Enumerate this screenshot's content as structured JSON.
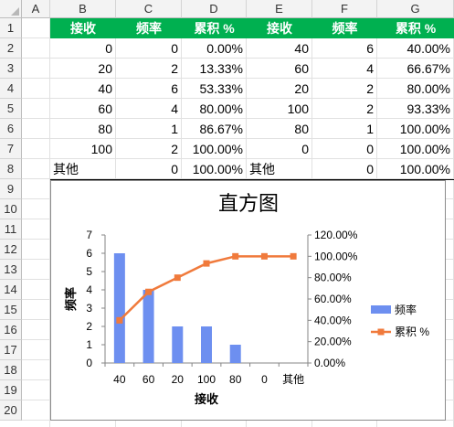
{
  "columns": [
    "A",
    "B",
    "C",
    "D",
    "E",
    "F",
    "G"
  ],
  "rows": [
    "1",
    "2",
    "3",
    "4",
    "5",
    "6",
    "7",
    "8",
    "9",
    "10",
    "11",
    "12",
    "13",
    "14",
    "15",
    "16",
    "17",
    "18",
    "19",
    "20"
  ],
  "table_left": {
    "headers": [
      "接收",
      "频率",
      "累积 %"
    ],
    "rows": [
      [
        "0",
        "0",
        "0.00%"
      ],
      [
        "20",
        "2",
        "13.33%"
      ],
      [
        "40",
        "6",
        "53.33%"
      ],
      [
        "60",
        "4",
        "80.00%"
      ],
      [
        "80",
        "1",
        "86.67%"
      ],
      [
        "100",
        "2",
        "100.00%"
      ],
      [
        "其他",
        "0",
        "100.00%"
      ]
    ]
  },
  "table_right": {
    "headers": [
      "接收",
      "频率",
      "累积 %"
    ],
    "rows": [
      [
        "40",
        "6",
        "40.00%"
      ],
      [
        "60",
        "4",
        "66.67%"
      ],
      [
        "20",
        "2",
        "80.00%"
      ],
      [
        "100",
        "2",
        "93.33%"
      ],
      [
        "80",
        "1",
        "100.00%"
      ],
      [
        "0",
        "0",
        "100.00%"
      ],
      [
        "其他",
        "0",
        "100.00%"
      ]
    ]
  },
  "chart_data": {
    "type": "bar",
    "title": "直方图",
    "xlabel": "接收",
    "ylabel": "频率",
    "categories": [
      "40",
      "60",
      "20",
      "100",
      "80",
      "0",
      "其他"
    ],
    "series": [
      {
        "name": "频率",
        "type": "bar",
        "axis": "left",
        "values": [
          6,
          4,
          2,
          2,
          1,
          0,
          0
        ],
        "color": "#6d8ff0"
      },
      {
        "name": "累积 %",
        "type": "line",
        "axis": "right",
        "values": [
          40.0,
          66.67,
          80.0,
          93.33,
          100.0,
          100.0,
          100.0
        ],
        "color": "#f07a3c"
      }
    ],
    "ylim_left": [
      0,
      7
    ],
    "yticks_left": [
      "0",
      "1",
      "2",
      "3",
      "4",
      "5",
      "6",
      "7"
    ],
    "ylim_right": [
      0,
      120
    ],
    "yticks_right": [
      "0.00%",
      "20.00%",
      "40.00%",
      "60.00%",
      "80.00%",
      "100.00%",
      "120.00%"
    ],
    "legend_position": "right",
    "grid": false
  }
}
